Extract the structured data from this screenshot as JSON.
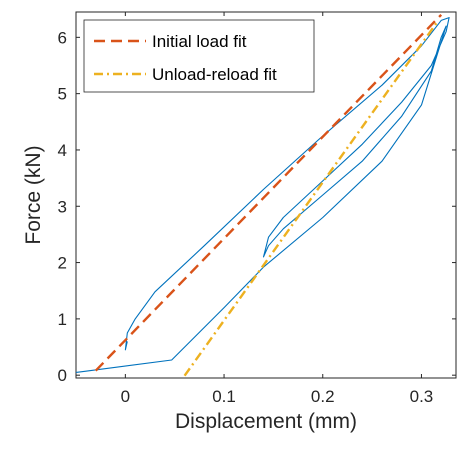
{
  "chart_data": {
    "type": "line",
    "xlabel": "Displacement (mm)",
    "ylabel": "Force (kN)",
    "xlim": [
      -0.05,
      0.335
    ],
    "ylim": [
      -0.05,
      6.45
    ],
    "xticks": [
      0,
      0.1,
      0.2,
      0.3
    ],
    "xtick_labels": [
      "0",
      "0.1",
      "0.2",
      "0.3"
    ],
    "yticks": [
      0,
      1,
      2,
      3,
      4,
      5,
      6
    ],
    "ytick_labels": [
      "0",
      "1",
      "2",
      "3",
      "4",
      "5",
      "6"
    ],
    "grid": false,
    "legend_position": "top-left",
    "series": [
      {
        "color": "#0072BD",
        "style": "solid",
        "x": [
          -0.05,
          -0.04,
          0.047,
          0.1,
          0.14,
          0.2,
          0.26,
          0.3,
          0.325,
          0.32,
          0.31,
          0.28,
          0.24,
          0.2,
          0.16,
          0.145,
          0.14,
          0.145,
          0.16,
          0.2,
          0.24,
          0.28,
          0.31,
          0.325,
          0.328,
          0.32,
          0.3,
          0.26,
          0.2,
          0.14,
          0.08,
          0.03,
          0.01,
          0.002,
          0.0,
          0.002
        ],
        "y": [
          0.05,
          0.07,
          0.27,
          1.2,
          1.92,
          2.8,
          3.8,
          4.8,
          6.2,
          6.0,
          5.4,
          4.6,
          3.8,
          3.2,
          2.6,
          2.3,
          2.1,
          2.45,
          2.8,
          3.45,
          4.1,
          4.85,
          5.5,
          6.1,
          6.35,
          6.3,
          5.85,
          5.15,
          4.25,
          3.3,
          2.3,
          1.48,
          1.0,
          0.75,
          0.45,
          0.6
        ]
      },
      {
        "name": "Initial load fit",
        "color": "#D95319",
        "style": "dashed",
        "x": [
          -0.03,
          0.32
        ],
        "y": [
          0.08,
          6.4
        ]
      },
      {
        "name": "Unload-reload fit",
        "color": "#EDB120",
        "style": "dashdot",
        "x": [
          0.06,
          0.315
        ],
        "y": [
          -0.01,
          6.25
        ]
      }
    ]
  }
}
